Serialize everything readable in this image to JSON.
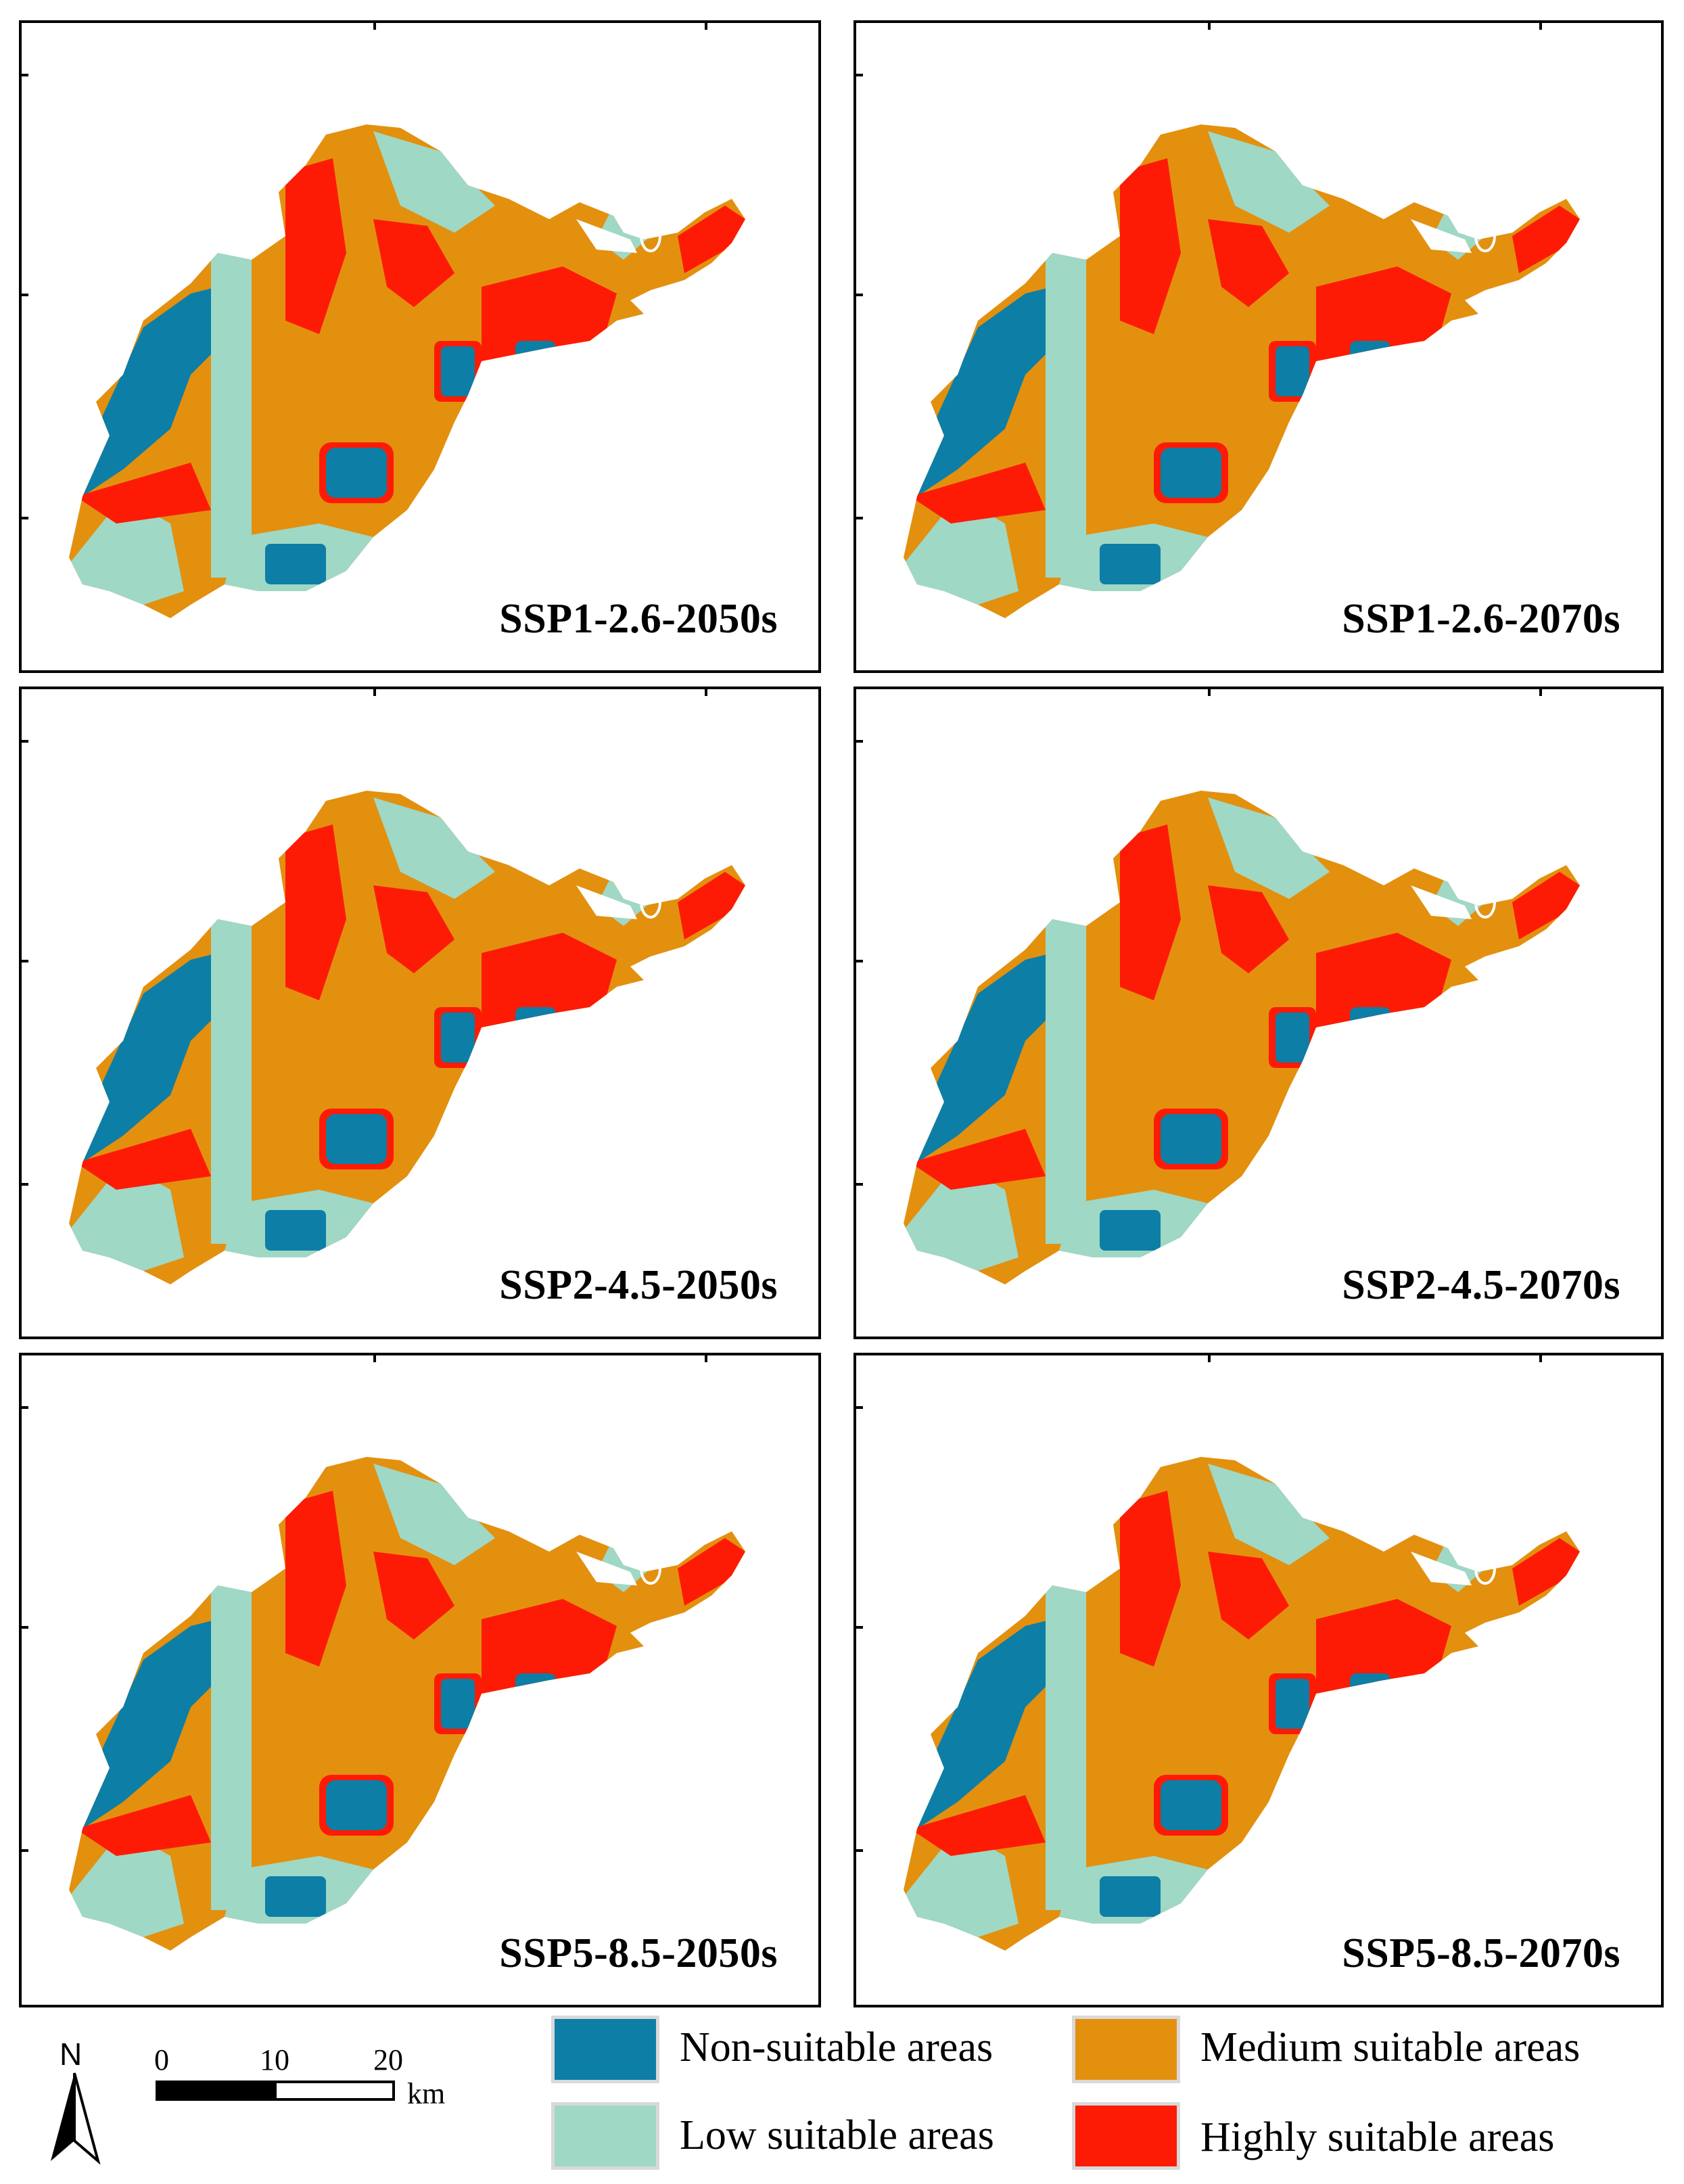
{
  "colors": {
    "non_suitable": "#0d7ea6",
    "low_suitable": "#9fd8c5",
    "medium_suitable": "#e3900f",
    "highly_suitable": "#fd1b05"
  },
  "panels": [
    {
      "label": "SSP1-2.6-2050s"
    },
    {
      "label": "SSP1-2.6-2070s"
    },
    {
      "label": "SSP2-4.5-2050s"
    },
    {
      "label": "SSP2-4.5-2070s"
    },
    {
      "label": "SSP5-8.5-2050s"
    },
    {
      "label": "SSP5-8.5-2070s"
    }
  ],
  "legend": {
    "items": [
      {
        "label": "Non-suitable areas",
        "icon": "non-suitable-swatch"
      },
      {
        "label": "Low suitable areas",
        "icon": "low-suitable-swatch"
      },
      {
        "label": "Medium suitable areas",
        "icon": "medium-suitable-swatch"
      },
      {
        "label": "Highly suitable areas",
        "icon": "highly-suitable-swatch"
      }
    ]
  },
  "north_arrow": {
    "letter": "N",
    "icon": "north-arrow-icon"
  },
  "scale_bar": {
    "ticks": [
      "0",
      "10",
      "20"
    ],
    "unit": "km"
  }
}
